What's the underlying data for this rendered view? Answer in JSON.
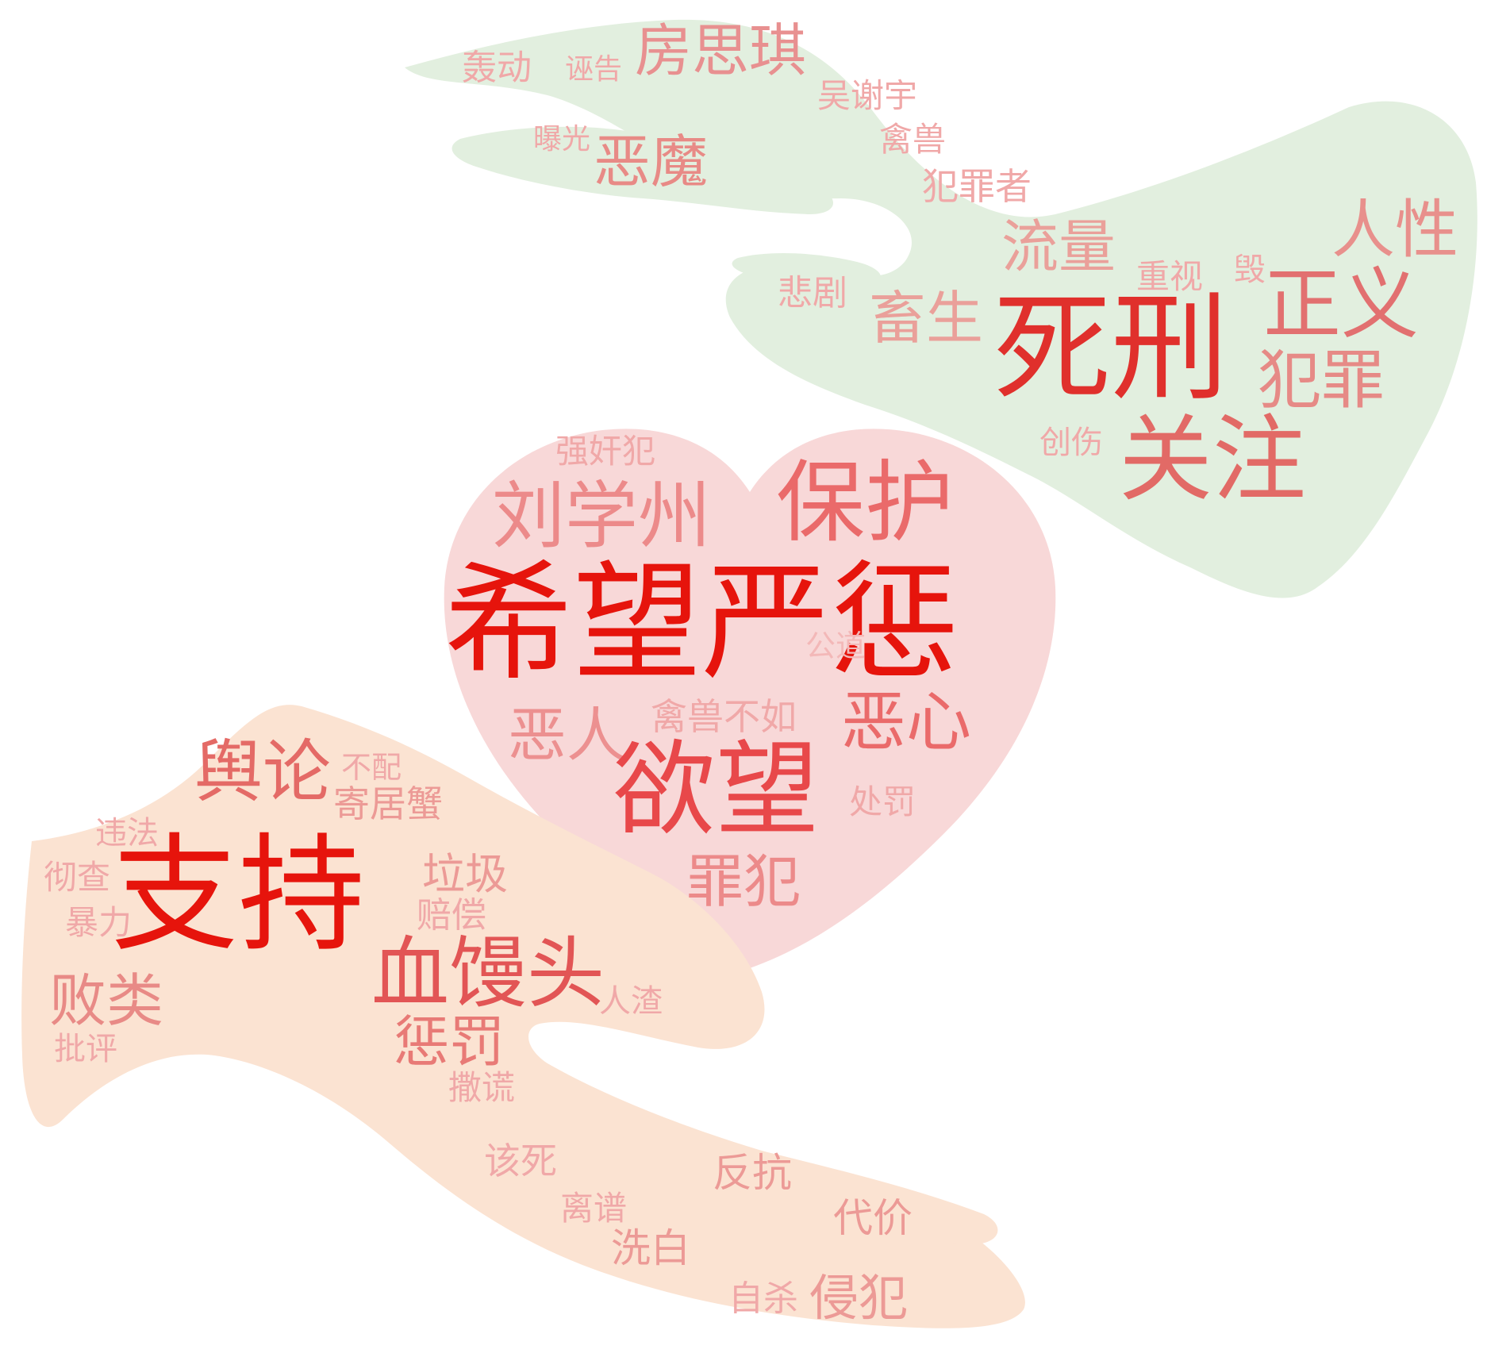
{
  "colors": {
    "background": "#ffffff",
    "top_hand_fill": "#e2efdf",
    "heart_fill": "#f8d8d8",
    "bottom_hand_fill": "#fbe3d2",
    "word_strong": "#e6140c",
    "word_medium": "#e25555",
    "word_light": "#ec8a8a",
    "word_faint": "#f0a8a8"
  },
  "shape_icons": [
    "hand-icon",
    "heart-icon",
    "hand-icon"
  ],
  "words": [
    {
      "id": "w01",
      "text": "希望严惩",
      "color": "#e6140c"
    },
    {
      "id": "w02",
      "text": "支持",
      "color": "#e6140c"
    },
    {
      "id": "w03",
      "text": "死刑",
      "color": "#e0302c"
    },
    {
      "id": "w04",
      "text": "欲望",
      "color": "#e8484a"
    },
    {
      "id": "w05",
      "text": "保护",
      "color": "#ea6a6a"
    },
    {
      "id": "w06",
      "text": "刘学州",
      "color": "#ec8a8a"
    },
    {
      "id": "w07",
      "text": "关注",
      "color": "#e26a66"
    },
    {
      "id": "w08",
      "text": "正义",
      "color": "#e27070"
    },
    {
      "id": "w09",
      "text": "犯罪",
      "color": "#e68a86"
    },
    {
      "id": "w10",
      "text": "人性",
      "color": "#e8908c"
    },
    {
      "id": "w11",
      "text": "血馒头",
      "color": "#e25555"
    },
    {
      "id": "w12",
      "text": "舆论",
      "color": "#e46a66"
    },
    {
      "id": "w13",
      "text": "恶心",
      "color": "#ea6a6a"
    },
    {
      "id": "w14",
      "text": "恶人",
      "color": "#ec9090"
    },
    {
      "id": "w15",
      "text": "罪犯",
      "color": "#ec8a8a"
    },
    {
      "id": "w16",
      "text": "败类",
      "color": "#e88a86"
    },
    {
      "id": "w17",
      "text": "惩罚",
      "color": "#e87a76"
    },
    {
      "id": "w18",
      "text": "垃圾",
      "color": "#ec9a96"
    },
    {
      "id": "w19",
      "text": "房思琪",
      "color": "#e89090"
    },
    {
      "id": "w20",
      "text": "恶魔",
      "color": "#e88a86"
    },
    {
      "id": "w21",
      "text": "流量",
      "color": "#eaa09a"
    },
    {
      "id": "w22",
      "text": "畜生",
      "color": "#eaa09a"
    },
    {
      "id": "w23",
      "text": "侵犯",
      "color": "#ec9a96"
    },
    {
      "id": "w24",
      "text": "强奸犯",
      "color": "#f0a8a8"
    },
    {
      "id": "w25",
      "text": "公道",
      "color": "#f3b8b8"
    },
    {
      "id": "w26",
      "text": "禽兽不如",
      "color": "#f0a8a8"
    },
    {
      "id": "w27",
      "text": "处罚",
      "color": "#f0a8a8"
    },
    {
      "id": "w28",
      "text": "不配",
      "color": "#f0a8a8"
    },
    {
      "id": "w29",
      "text": "寄居蟹",
      "color": "#ec9a96"
    },
    {
      "id": "w30",
      "text": "违法",
      "color": "#f0a8a8"
    },
    {
      "id": "w31",
      "text": "彻查",
      "color": "#f0a8a8"
    },
    {
      "id": "w32",
      "text": "暴力",
      "color": "#f0a8a8"
    },
    {
      "id": "w33",
      "text": "赔偿",
      "color": "#f0a8a8"
    },
    {
      "id": "w34",
      "text": "人渣",
      "color": "#f0a8a8"
    },
    {
      "id": "w35",
      "text": "批评",
      "color": "#f0a8a8"
    },
    {
      "id": "w36",
      "text": "撒谎",
      "color": "#f0a8a8"
    },
    {
      "id": "w37",
      "text": "该死",
      "color": "#f0a8a8"
    },
    {
      "id": "w38",
      "text": "反抗",
      "color": "#ec9a96"
    },
    {
      "id": "w39",
      "text": "离谱",
      "color": "#f0a8a8"
    },
    {
      "id": "w40",
      "text": "代价",
      "color": "#ec9a96"
    },
    {
      "id": "w41",
      "text": "洗白",
      "color": "#ec9a96"
    },
    {
      "id": "w42",
      "text": "自杀",
      "color": "#f0a8a8"
    },
    {
      "id": "w43",
      "text": "轰动",
      "color": "#f0a8a8"
    },
    {
      "id": "w44",
      "text": "诬告",
      "color": "#f0a8a8"
    },
    {
      "id": "w45",
      "text": "吴谢宇",
      "color": "#f0a8a8"
    },
    {
      "id": "w46",
      "text": "曝光",
      "color": "#f0a8a8"
    },
    {
      "id": "w47",
      "text": "禽兽",
      "color": "#f0a8a8"
    },
    {
      "id": "w48",
      "text": "犯罪者",
      "color": "#f0a8a8"
    },
    {
      "id": "w49",
      "text": "重视",
      "color": "#f0a8a8"
    },
    {
      "id": "w50",
      "text": "毁",
      "color": "#f0a8a8"
    },
    {
      "id": "w51",
      "text": "悲剧",
      "color": "#f0a8a8"
    },
    {
      "id": "w52",
      "text": "创伤",
      "color": "#f0a8a8"
    }
  ]
}
